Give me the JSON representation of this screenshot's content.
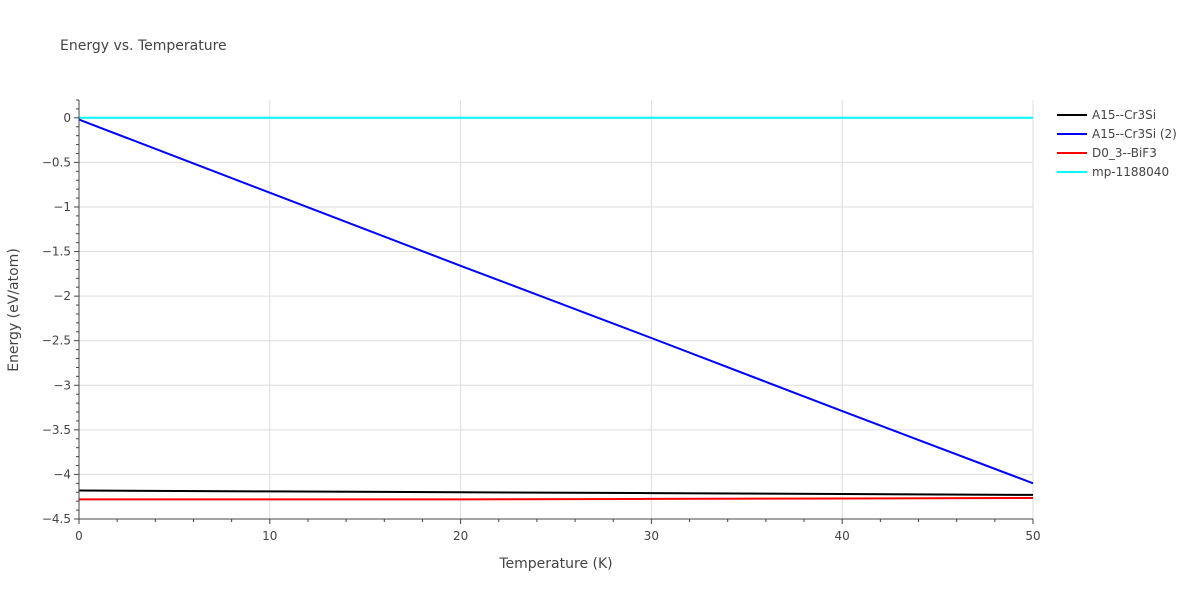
{
  "chart_data": {
    "type": "line",
    "title": "Energy vs. Temperature",
    "xlabel": "Temperature (K)",
    "ylabel": "Energy (eV/atom)",
    "xlim": [
      0,
      50
    ],
    "ylim": [
      -4.5,
      0.2
    ],
    "x_ticks": [
      0,
      10,
      20,
      30,
      40,
      50
    ],
    "x_tick_labels": [
      "0",
      "10",
      "20",
      "30",
      "40",
      "50"
    ],
    "y_ticks": [
      0,
      -0.5,
      -1,
      -1.5,
      -2,
      -2.5,
      -3,
      -3.5,
      -4,
      -4.5
    ],
    "y_tick_labels": [
      "0",
      "−0.5",
      "−1",
      "−1.5",
      "−2",
      "−2.5",
      "−3",
      "−3.5",
      "−4",
      "−4.5"
    ],
    "grid": true,
    "legend_position": "top-right, outside plot",
    "series": [
      {
        "name": "A15--Cr3Si",
        "color": "#000000",
        "x": [
          0,
          10,
          20,
          30,
          40,
          50
        ],
        "values": [
          -4.18,
          -4.19,
          -4.2,
          -4.21,
          -4.22,
          -4.23
        ]
      },
      {
        "name": "A15--Cr3Si (2)",
        "color": "#0000ff",
        "x": [
          0,
          10,
          20,
          30,
          40,
          50
        ],
        "values": [
          -0.02,
          -0.84,
          -1.66,
          -2.47,
          -3.29,
          -4.1
        ]
      },
      {
        "name": "D0_3--BiF3",
        "color": "#ff0000",
        "x": [
          0,
          10,
          20,
          30,
          40,
          50
        ],
        "values": [
          -4.28,
          -4.28,
          -4.28,
          -4.275,
          -4.27,
          -4.265
        ]
      },
      {
        "name": "mp-1188040",
        "color": "#00ffff",
        "x": [
          0,
          50
        ],
        "values": [
          0,
          0
        ]
      }
    ]
  }
}
